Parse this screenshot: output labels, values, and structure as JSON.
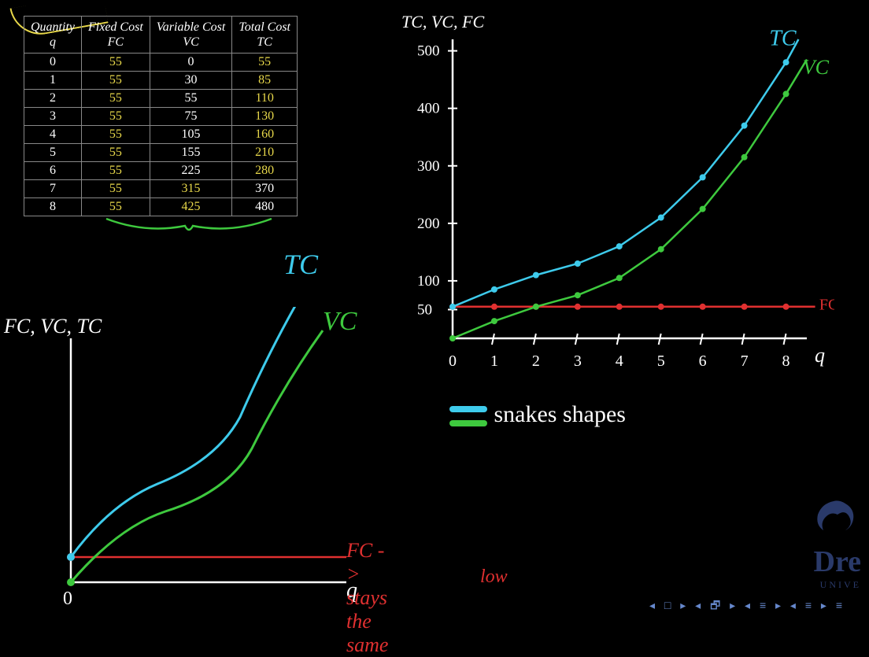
{
  "table": {
    "columns": [
      {
        "label": "Quantity",
        "sublabel": "q"
      },
      {
        "label": "Fixed Cost",
        "sublabel": "FC"
      },
      {
        "label": "Variable Cost",
        "sublabel": "VC"
      },
      {
        "label": "Total Cost",
        "sublabel": "TC"
      }
    ],
    "rows": [
      {
        "q": "0",
        "fc": "55",
        "vc": "0",
        "tc": "55",
        "fc_hl": true,
        "tc_hl": true
      },
      {
        "q": "1",
        "fc": "55",
        "vc": "30",
        "tc": "85",
        "fc_hl": true,
        "tc_hl": true
      },
      {
        "q": "2",
        "fc": "55",
        "vc": "55",
        "tc": "110",
        "fc_hl": true,
        "tc_hl": true
      },
      {
        "q": "3",
        "fc": "55",
        "vc": "75",
        "tc": "130",
        "fc_hl": true,
        "tc_hl": true
      },
      {
        "q": "4",
        "fc": "55",
        "vc": "105",
        "tc": "160",
        "fc_hl": true,
        "tc_hl": true
      },
      {
        "q": "5",
        "fc": "55",
        "vc": "155",
        "tc": "210",
        "fc_hl": true,
        "tc_hl": true
      },
      {
        "q": "6",
        "fc": "55",
        "vc": "225",
        "tc": "280",
        "fc_hl": true,
        "tc_hl": true
      },
      {
        "q": "7",
        "fc": "55",
        "vc": "315",
        "tc": "370",
        "fc_hl": true,
        "vc_hl": true
      },
      {
        "q": "8",
        "fc": "55",
        "vc": "425",
        "tc": "480",
        "fc_hl": true,
        "vc_hl": true
      }
    ],
    "border_color": "#888888",
    "text_color": "#ffffff",
    "highlight_color": "#e8d84a"
  },
  "upper_chart": {
    "type": "line",
    "y_axis_label": "TC, VC, FC",
    "x_axis_label": "q",
    "x_range": [
      0,
      8.5
    ],
    "y_range": [
      0,
      520
    ],
    "y_ticks": [
      50,
      100,
      200,
      300,
      400,
      500
    ],
    "x_ticks": [
      0,
      1,
      2,
      3,
      4,
      5,
      6,
      7,
      8
    ],
    "background_color": "#000000",
    "axis_color": "#ffffff",
    "series": {
      "FC": {
        "label": "FC",
        "color": "#e03030",
        "label_color": "#e03030",
        "points": [
          {
            "x": 0,
            "y": 55
          },
          {
            "x": 1,
            "y": 55
          },
          {
            "x": 2,
            "y": 55
          },
          {
            "x": 3,
            "y": 55
          },
          {
            "x": 4,
            "y": 55
          },
          {
            "x": 5,
            "y": 55
          },
          {
            "x": 6,
            "y": 55
          },
          {
            "x": 7,
            "y": 55
          },
          {
            "x": 8,
            "y": 55
          }
        ]
      },
      "VC": {
        "label": "VC",
        "color": "#3ec93e",
        "label_color": "#3ec93e",
        "points": [
          {
            "x": 0,
            "y": 0
          },
          {
            "x": 1,
            "y": 30
          },
          {
            "x": 2,
            "y": 55
          },
          {
            "x": 3,
            "y": 75
          },
          {
            "x": 4,
            "y": 105
          },
          {
            "x": 5,
            "y": 155
          },
          {
            "x": 6,
            "y": 225
          },
          {
            "x": 7,
            "y": 315
          },
          {
            "x": 8,
            "y": 425
          }
        ]
      },
      "TC": {
        "label": "TC",
        "color": "#3ecbec",
        "label_color": "#3ecbec",
        "points": [
          {
            "x": 0,
            "y": 55
          },
          {
            "x": 1,
            "y": 85
          },
          {
            "x": 2,
            "y": 110
          },
          {
            "x": 3,
            "y": 130
          },
          {
            "x": 4,
            "y": 160
          },
          {
            "x": 5,
            "y": 210
          },
          {
            "x": 6,
            "y": 280
          },
          {
            "x": 7,
            "y": 370
          },
          {
            "x": 8,
            "y": 480
          }
        ]
      }
    }
  },
  "lower_chart": {
    "type": "sketch",
    "y_axis_label": "FC, VC, TC",
    "x_axis_label": "q",
    "origin_label": "0",
    "axis_color": "#ffffff",
    "tc_label": "TC",
    "tc_color": "#3ecbec",
    "vc_label": "VC",
    "vc_color": "#3ec93e",
    "fc_color": "#e03030",
    "fc_annotation": "FC -> stays the same",
    "fc_annotation2": "low",
    "fc_annotation_color": "#e03030"
  },
  "annotations": {
    "snakes_shapes": "snakes shapes",
    "snakes_color": "#ffffff",
    "legend_tc_color": "#3ecbec",
    "legend_vc_color": "#3ec93e"
  },
  "logo": {
    "text": "Dre",
    "subtext": "UNIVE",
    "color": "#2a3a6a"
  },
  "nav": {
    "text": "◂ □ ▸ ◂ 🗗 ▸ ◂ ≡ ▸ ◂ ≡ ▸   ≡"
  }
}
